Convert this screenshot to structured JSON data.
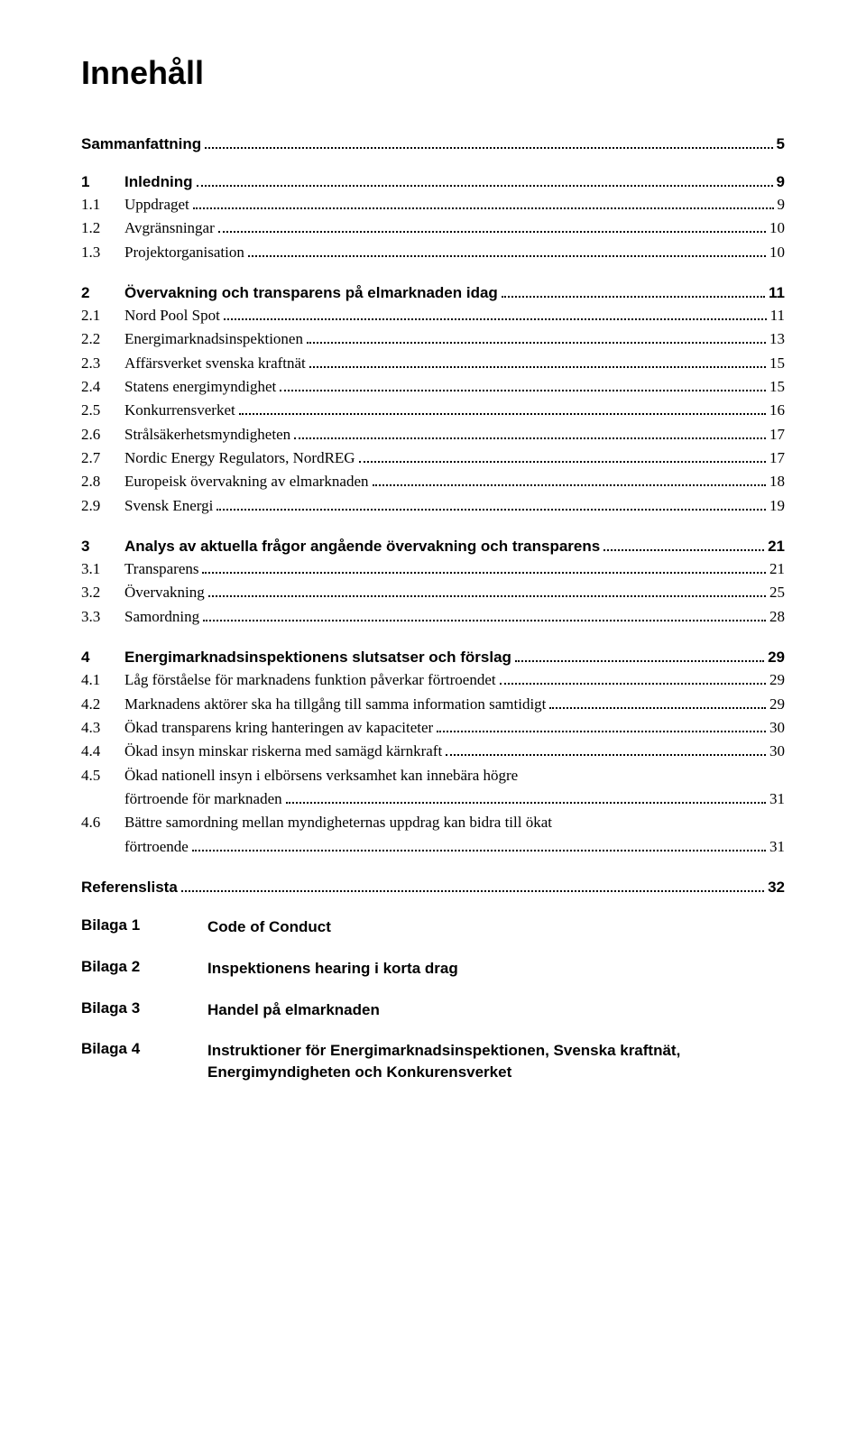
{
  "title": "Innehåll",
  "sections": [
    {
      "heading": {
        "num": "",
        "label": "Sammanfattning",
        "page": "5"
      },
      "subs": []
    },
    {
      "heading": {
        "num": "1",
        "label": "Inledning",
        "page": "9"
      },
      "subs": [
        {
          "num": "1.1",
          "label": "Uppdraget",
          "page": "9"
        },
        {
          "num": "1.2",
          "label": "Avgränsningar",
          "page": "10"
        },
        {
          "num": "1.3",
          "label": "Projektorganisation",
          "page": "10"
        }
      ]
    },
    {
      "heading": {
        "num": "2",
        "label": "Övervakning och transparens på elmarknaden idag",
        "page": "11"
      },
      "subs": [
        {
          "num": "2.1",
          "label": "Nord Pool Spot",
          "page": "11"
        },
        {
          "num": "2.2",
          "label": "Energimarknadsinspektionen",
          "page": "13"
        },
        {
          "num": "2.3",
          "label": "Affärsverket svenska kraftnät",
          "page": "15"
        },
        {
          "num": "2.4",
          "label": "Statens energimyndighet",
          "page": "15"
        },
        {
          "num": "2.5",
          "label": "Konkurrensverket",
          "page": "16"
        },
        {
          "num": "2.6",
          "label": "Strålsäkerhetsmyndigheten",
          "page": "17"
        },
        {
          "num": "2.7",
          "label": "Nordic Energy Regulators, NordREG",
          "page": "17"
        },
        {
          "num": "2.8",
          "label": "Europeisk övervakning av elmarknaden",
          "page": "18"
        },
        {
          "num": "2.9",
          "label": "Svensk Energi",
          "page": "19"
        }
      ]
    },
    {
      "heading": {
        "num": "3",
        "label": "Analys av aktuella frågor angående övervakning och transparens",
        "page": "21"
      },
      "subs": [
        {
          "num": "3.1",
          "label": "Transparens",
          "page": "21"
        },
        {
          "num": "3.2",
          "label": "Övervakning",
          "page": "25"
        },
        {
          "num": "3.3",
          "label": "Samordning",
          "page": "28"
        }
      ]
    },
    {
      "heading": {
        "num": "4",
        "label": "Energimarknadsinspektionens slutsatser och förslag",
        "page": "29"
      },
      "subs": [
        {
          "num": "4.1",
          "label": "Låg förståelse för marknadens funktion påverkar förtroendet",
          "page": "29"
        },
        {
          "num": "4.2",
          "label": "Marknadens aktörer ska ha tillgång till samma information samtidigt",
          "page": "29"
        },
        {
          "num": "4.3",
          "label": "Ökad transparens kring hanteringen av kapaciteter",
          "page": "30"
        },
        {
          "num": "4.4",
          "label": "Ökad insyn minskar riskerna med samägd kärnkraft",
          "page": "30"
        },
        {
          "num": "4.5",
          "multiline": true,
          "line1": "Ökad nationell insyn i elbörsens verksamhet kan innebära högre",
          "line2": "förtroende för marknaden",
          "page": "31"
        },
        {
          "num": "4.6",
          "multiline": true,
          "line1": "Bättre samordning mellan myndigheternas uppdrag kan bidra till ökat",
          "line2": "förtroende",
          "page": "31"
        }
      ]
    }
  ],
  "references": {
    "label": "Referenslista",
    "page": "32"
  },
  "bilagor": [
    {
      "num": "Bilaga 1",
      "label": "Code of Conduct"
    },
    {
      "num": "Bilaga 2",
      "label": "Inspektionens hearing i korta drag"
    },
    {
      "num": "Bilaga 3",
      "label": "Handel på elmarknaden"
    },
    {
      "num": "Bilaga 4",
      "label": "Instruktioner för Energimarknadsinspektionen, Svenska kraftnät, Energimyndigheten och Konkurensverket"
    }
  ]
}
